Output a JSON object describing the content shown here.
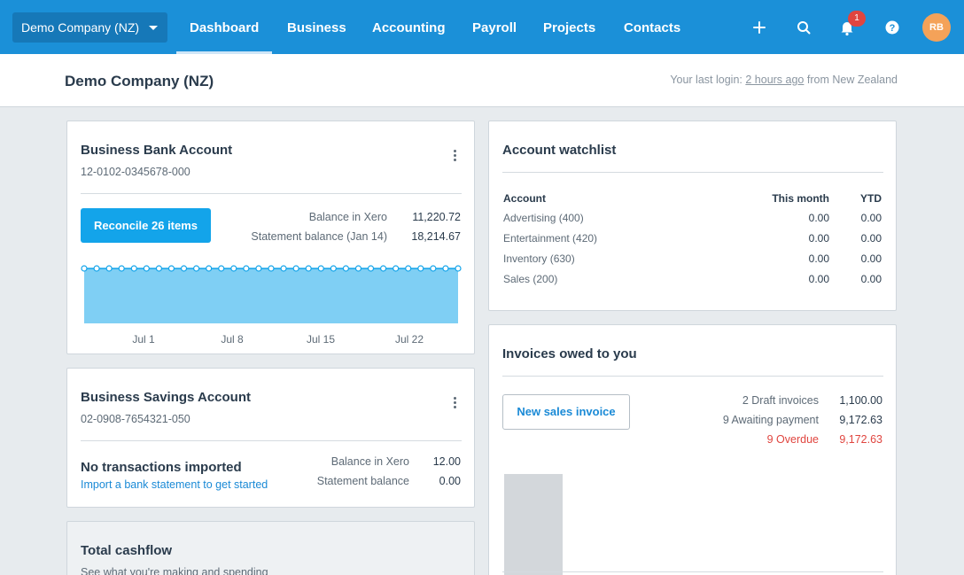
{
  "nav": {
    "org_name": "Demo Company (NZ)",
    "tabs": [
      {
        "label": "Dashboard",
        "active": true
      },
      {
        "label": "Business"
      },
      {
        "label": "Accounting"
      },
      {
        "label": "Payroll"
      },
      {
        "label": "Projects"
      },
      {
        "label": "Contacts"
      }
    ],
    "notification_count": "1",
    "avatar_initials": "RB",
    "icons": [
      "plus-icon",
      "search-icon",
      "bell-icon",
      "help-icon"
    ]
  },
  "header": {
    "title": "Demo Company (NZ)",
    "last_login_prefix": "Your last login:",
    "last_login_time": "2 hours ago",
    "last_login_suffix": "from New Zealand"
  },
  "bank_account": {
    "title": "Business Bank Account",
    "number": "12-0102-0345678-000",
    "reconcile_label": "Reconcile 26 items",
    "balance_xero_label": "Balance in Xero",
    "balance_xero_value": "11,220.72",
    "statement_label": "Statement balance (Jan 14)",
    "statement_value": "18,214.67",
    "chart_data": {
      "type": "area",
      "x_tick_labels": [
        "Jul 1",
        "Jul 8",
        "Jul 15",
        "Jul 22"
      ],
      "points": 31,
      "level": 1.0,
      "grid": false
    }
  },
  "savings_account": {
    "title": "Business Savings Account",
    "number": "02-0908-7654321-050",
    "no_tx_label": "No transactions imported",
    "import_link": "Import a bank statement to get started",
    "balance_xero_label": "Balance in Xero",
    "balance_xero_value": "12.00",
    "statement_label": "Statement balance",
    "statement_value": "0.00"
  },
  "cashflow": {
    "title": "Total cashflow",
    "subtitle": "See what you're making and spending"
  },
  "watchlist": {
    "title": "Account watchlist",
    "headers": {
      "account": "Account",
      "month": "This month",
      "ytd": "YTD"
    },
    "rows": [
      {
        "account": "Advertising (400)",
        "month": "0.00",
        "ytd": "0.00"
      },
      {
        "account": "Entertainment (420)",
        "month": "0.00",
        "ytd": "0.00"
      },
      {
        "account": "Inventory (630)",
        "month": "0.00",
        "ytd": "0.00"
      },
      {
        "account": "Sales (200)",
        "month": "0.00",
        "ytd": "0.00"
      }
    ]
  },
  "invoices": {
    "title": "Invoices owed to you",
    "new_invoice_label": "New sales invoice",
    "rows": [
      {
        "label": "2 Draft invoices",
        "value": "1,100.00",
        "overdue": false
      },
      {
        "label": "9 Awaiting payment",
        "value": "9,172.63",
        "overdue": false
      },
      {
        "label": "9 Overdue",
        "value": "9,172.63",
        "overdue": true
      }
    ],
    "overdue_color": "#e0453f"
  },
  "colors": {
    "brand": "#1b90d8",
    "accent_button": "#13a4ea",
    "chart_fill": "#7fcff4"
  }
}
